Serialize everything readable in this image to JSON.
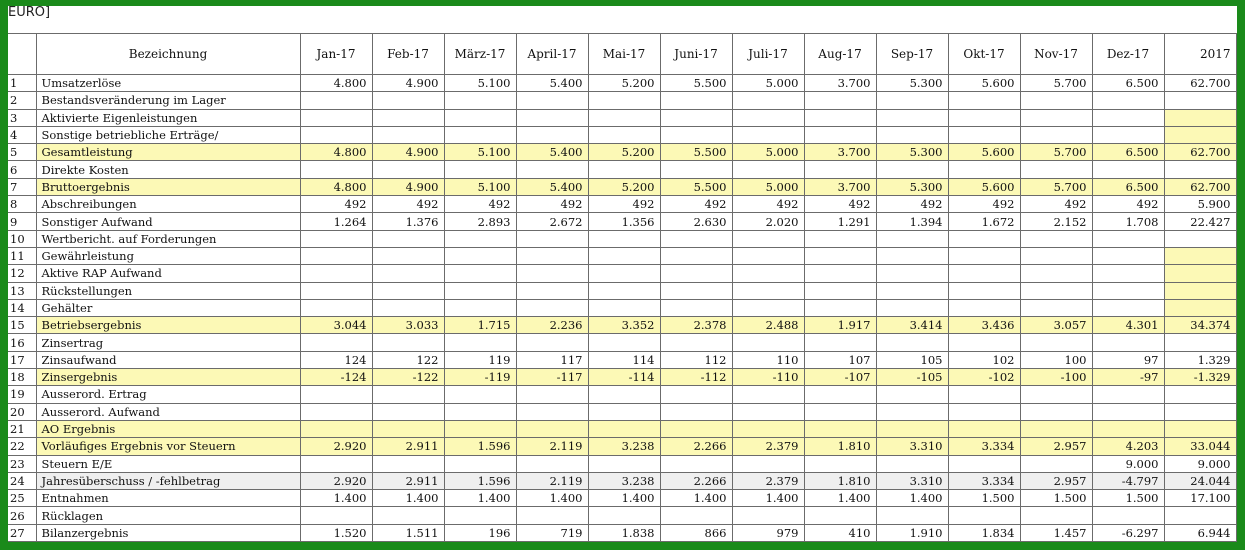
{
  "caption": "EURO]",
  "columns": [
    "",
    "Bezeichnung",
    "Jan-17",
    "Feb-17",
    "März-17",
    "April-17",
    "Mai-17",
    "Juni-17",
    "Juli-17",
    "Aug-17",
    "Sep-17",
    "Okt-17",
    "Nov-17",
    "Dez-17",
    "2017"
  ],
  "highlight_color": "#fcf9b6",
  "rows": [
    {
      "n": "1",
      "label": "Umsatzerlöse",
      "values": [
        "4.800",
        "4.900",
        "5.100",
        "5.400",
        "5.200",
        "5.500",
        "5.000",
        "3.700",
        "5.300",
        "5.600",
        "5.700",
        "6.500",
        "62.700"
      ],
      "style": ""
    },
    {
      "n": "2",
      "label": "Bestandsveränderung im Lager",
      "values": [
        "",
        "",
        "",
        "",
        "",
        "",
        "",
        "",
        "",
        "",
        "",
        "",
        ""
      ],
      "style": ""
    },
    {
      "n": "3",
      "label": "Aktivierte Eigenleistungen",
      "values": [
        "",
        "",
        "",
        "",
        "",
        "",
        "",
        "",
        "",
        "",
        "",
        "",
        ""
      ],
      "style": "yearhl"
    },
    {
      "n": "4",
      "label": "Sonstige betriebliche Erträge/",
      "values": [
        "",
        "",
        "",
        "",
        "",
        "",
        "",
        "",
        "",
        "",
        "",
        "",
        ""
      ],
      "style": "yearhl"
    },
    {
      "n": "5",
      "label": "Gesamtleistung",
      "values": [
        "4.800",
        "4.900",
        "5.100",
        "5.400",
        "5.200",
        "5.500",
        "5.000",
        "3.700",
        "5.300",
        "5.600",
        "5.700",
        "6.500",
        "62.700"
      ],
      "style": "hl"
    },
    {
      "n": "6",
      "label": "Direkte Kosten",
      "values": [
        "",
        "",
        "",
        "",
        "",
        "",
        "",
        "",
        "",
        "",
        "",
        "",
        ""
      ],
      "style": ""
    },
    {
      "n": "7",
      "label": "Bruttoergebnis",
      "values": [
        "4.800",
        "4.900",
        "5.100",
        "5.400",
        "5.200",
        "5.500",
        "5.000",
        "3.700",
        "5.300",
        "5.600",
        "5.700",
        "6.500",
        "62.700"
      ],
      "style": "hl"
    },
    {
      "n": "8",
      "label": "Abschreibungen",
      "values": [
        "492",
        "492",
        "492",
        "492",
        "492",
        "492",
        "492",
        "492",
        "492",
        "492",
        "492",
        "492",
        "5.900"
      ],
      "style": ""
    },
    {
      "n": "9",
      "label": "Sonstiger Aufwand",
      "values": [
        "1.264",
        "1.376",
        "2.893",
        "2.672",
        "1.356",
        "2.630",
        "2.020",
        "1.291",
        "1.394",
        "1.672",
        "2.152",
        "1.708",
        "22.427"
      ],
      "style": ""
    },
    {
      "n": "10",
      "label": "Wertbericht. auf Forderungen",
      "values": [
        "",
        "",
        "",
        "",
        "",
        "",
        "",
        "",
        "",
        "",
        "",
        "",
        ""
      ],
      "style": ""
    },
    {
      "n": "11",
      "label": "Gewährleistung",
      "values": [
        "",
        "",
        "",
        "",
        "",
        "",
        "",
        "",
        "",
        "",
        "",
        "",
        ""
      ],
      "style": "yearhl"
    },
    {
      "n": "12",
      "label": "Aktive RAP Aufwand",
      "values": [
        "",
        "",
        "",
        "",
        "",
        "",
        "",
        "",
        "",
        "",
        "",
        "",
        ""
      ],
      "style": "yearhl"
    },
    {
      "n": "13",
      "label": "Rückstellungen",
      "values": [
        "",
        "",
        "",
        "",
        "",
        "",
        "",
        "",
        "",
        "",
        "",
        "",
        ""
      ],
      "style": "yearhl"
    },
    {
      "n": "14",
      "label": "Gehälter",
      "values": [
        "",
        "",
        "",
        "",
        "",
        "",
        "",
        "",
        "",
        "",
        "",
        "",
        ""
      ],
      "style": "yearhl"
    },
    {
      "n": "15",
      "label": "Betriebsergebnis",
      "values": [
        "3.044",
        "3.033",
        "1.715",
        "2.236",
        "3.352",
        "2.378",
        "2.488",
        "1.917",
        "3.414",
        "3.436",
        "3.057",
        "4.301",
        "34.374"
      ],
      "style": "hl"
    },
    {
      "n": "16",
      "label": "Zinsertrag",
      "values": [
        "",
        "",
        "",
        "",
        "",
        "",
        "",
        "",
        "",
        "",
        "",
        "",
        ""
      ],
      "style": ""
    },
    {
      "n": "17",
      "label": "Zinsaufwand",
      "values": [
        "124",
        "122",
        "119",
        "117",
        "114",
        "112",
        "110",
        "107",
        "105",
        "102",
        "100",
        "97",
        "1.329"
      ],
      "style": ""
    },
    {
      "n": "18",
      "label": "Zinsergebnis",
      "values": [
        "-124",
        "-122",
        "-119",
        "-117",
        "-114",
        "-112",
        "-110",
        "-107",
        "-105",
        "-102",
        "-100",
        "-97",
        "-1.329"
      ],
      "style": "hl"
    },
    {
      "n": "19",
      "label": "Ausserord. Ertrag",
      "values": [
        "",
        "",
        "",
        "",
        "",
        "",
        "",
        "",
        "",
        "",
        "",
        "",
        ""
      ],
      "style": ""
    },
    {
      "n": "20",
      "label": "Ausserord. Aufwand",
      "values": [
        "",
        "",
        "",
        "",
        "",
        "",
        "",
        "",
        "",
        "",
        "",
        "",
        ""
      ],
      "style": ""
    },
    {
      "n": "21",
      "label": "AO Ergebnis",
      "values": [
        "",
        "",
        "",
        "",
        "",
        "",
        "",
        "",
        "",
        "",
        "",
        "",
        ""
      ],
      "style": "hl"
    },
    {
      "n": "22",
      "label": "Vorläufiges Ergebnis vor Steuern",
      "values": [
        "2.920",
        "2.911",
        "1.596",
        "2.119",
        "3.238",
        "2.266",
        "2.379",
        "1.810",
        "3.310",
        "3.334",
        "2.957",
        "4.203",
        "33.044"
      ],
      "style": "hl"
    },
    {
      "n": "23",
      "label": "Steuern E/E",
      "values": [
        "",
        "",
        "",
        "",
        "",
        "",
        "",
        "",
        "",
        "",
        "",
        "9.000",
        "9.000"
      ],
      "style": ""
    },
    {
      "n": "24",
      "label": "Jahresüberschuss / -fehlbetrag",
      "values": [
        "2.920",
        "2.911",
        "1.596",
        "2.119",
        "3.238",
        "2.266",
        "2.379",
        "1.810",
        "3.310",
        "3.334",
        "2.957",
        "-4.797",
        "24.044"
      ],
      "style": "gr"
    },
    {
      "n": "25",
      "label": "Entnahmen",
      "values": [
        "1.400",
        "1.400",
        "1.400",
        "1.400",
        "1.400",
        "1.400",
        "1.400",
        "1.400",
        "1.400",
        "1.500",
        "1.500",
        "1.500",
        "17.100"
      ],
      "style": ""
    },
    {
      "n": "26",
      "label": "Rücklagen",
      "values": [
        "",
        "",
        "",
        "",
        "",
        "",
        "",
        "",
        "",
        "",
        "",
        "",
        ""
      ],
      "style": ""
    },
    {
      "n": "27",
      "label": "Bilanzergebnis",
      "values": [
        "1.520",
        "1.511",
        "196",
        "719",
        "1.838",
        "866",
        "979",
        "410",
        "1.910",
        "1.834",
        "1.457",
        "-6.297",
        "6.944"
      ],
      "style": ""
    }
  ]
}
